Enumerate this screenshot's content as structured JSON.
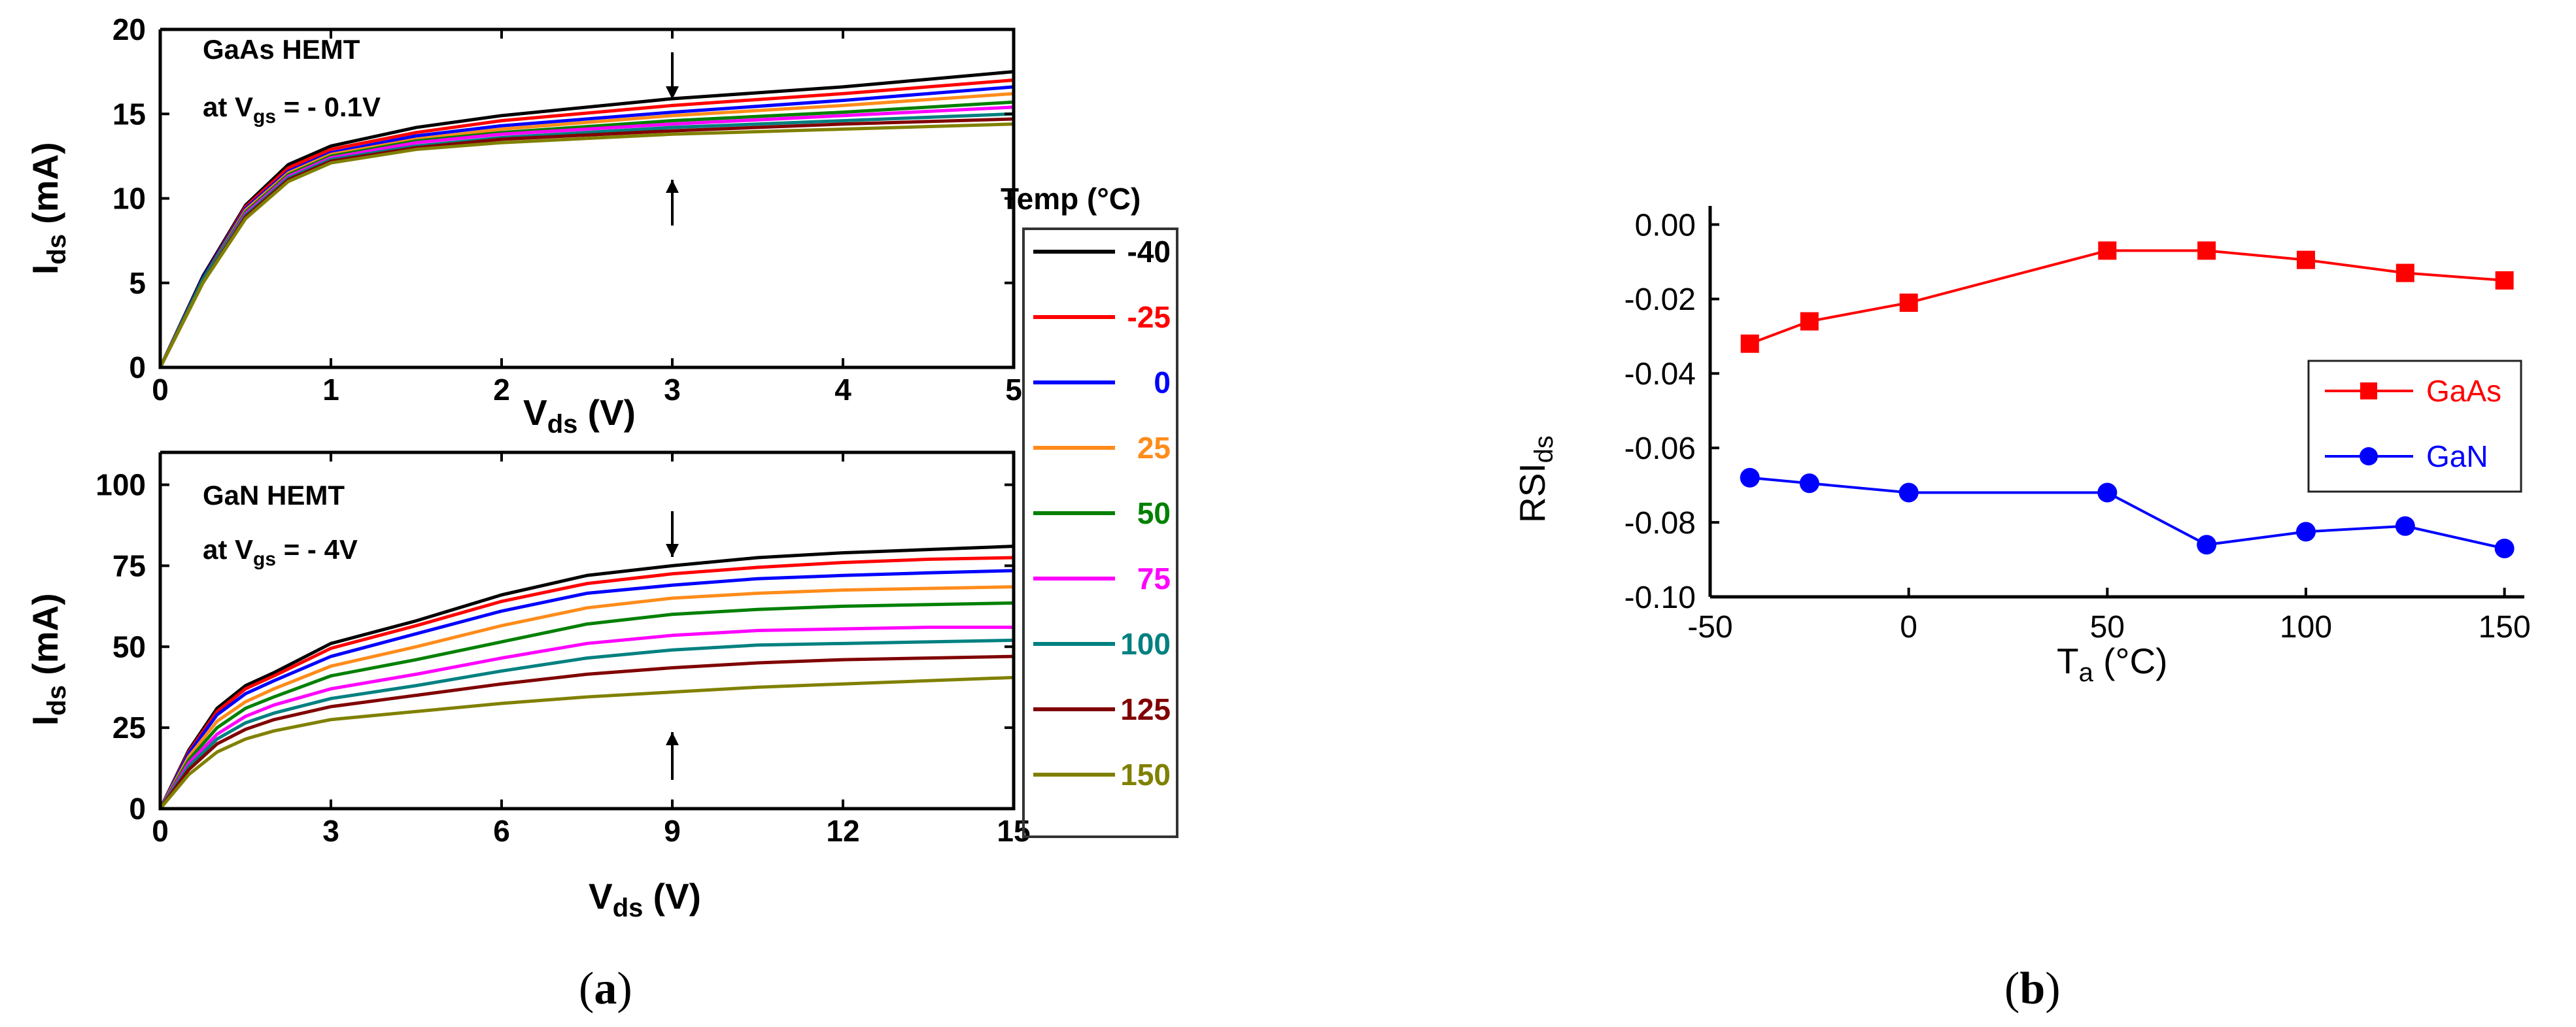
{
  "chart_data": [
    {
      "id": "gaas",
      "type": "line",
      "annotation": {
        "line1": "GaAs HEMT",
        "line2_prefix": "at V",
        "line2_sub": "gs",
        "line2_suffix": " = - 0.1V"
      },
      "xlabel": {
        "main": "V",
        "sub": "ds",
        "unit": " (V)"
      },
      "ylabel": {
        "main": "I",
        "sub": "ds",
        "unit": " (mA)"
      },
      "xlim": [
        0,
        5
      ],
      "ylim": [
        0,
        20
      ],
      "xticks": [
        "0",
        "1",
        "2",
        "3",
        "4",
        "5"
      ],
      "yticks": [
        "0",
        "5",
        "10",
        "15",
        "20"
      ],
      "arrow_x": 3,
      "x": [
        0,
        0.25,
        0.5,
        0.75,
        1,
        1.5,
        2,
        3,
        4,
        5
      ],
      "series": [
        {
          "name": "-40",
          "values": [
            0,
            5.4,
            9.6,
            12.0,
            13.1,
            14.2,
            14.9,
            15.9,
            16.6,
            17.5
          ]
        },
        {
          "name": "-25",
          "values": [
            0,
            5.3,
            9.5,
            11.8,
            12.9,
            13.9,
            14.6,
            15.5,
            16.2,
            17.0
          ]
        },
        {
          "name": "0",
          "values": [
            0,
            5.3,
            9.4,
            11.6,
            12.7,
            13.7,
            14.3,
            15.1,
            15.8,
            16.6
          ]
        },
        {
          "name": "25",
          "values": [
            0,
            5.2,
            9.3,
            11.5,
            12.6,
            13.5,
            14.1,
            14.9,
            15.5,
            16.2
          ]
        },
        {
          "name": "50",
          "values": [
            0,
            5.2,
            9.2,
            11.4,
            12.5,
            13.4,
            13.9,
            14.6,
            15.1,
            15.7
          ]
        },
        {
          "name": "75",
          "values": [
            0,
            5.1,
            9.1,
            11.3,
            12.4,
            13.3,
            13.8,
            14.4,
            14.9,
            15.4
          ]
        },
        {
          "name": "100",
          "values": [
            0,
            5.1,
            9.0,
            11.2,
            12.3,
            13.1,
            13.6,
            14.2,
            14.6,
            15.0
          ]
        },
        {
          "name": "125",
          "values": [
            0,
            5.0,
            8.9,
            11.1,
            12.2,
            13.0,
            13.5,
            14.0,
            14.4,
            14.7
          ]
        },
        {
          "name": "150",
          "values": [
            0,
            5.0,
            8.8,
            11.0,
            12.1,
            12.9,
            13.3,
            13.8,
            14.1,
            14.4
          ]
        }
      ]
    },
    {
      "id": "gan",
      "type": "line",
      "annotation": {
        "line1": "GaN HEMT",
        "line2_prefix": "at V",
        "line2_sub": "gs",
        "line2_suffix": " = - 4V"
      },
      "xlabel": {
        "main": "V",
        "sub": "ds",
        "unit": " (V)"
      },
      "ylabel": {
        "main": "I",
        "sub": "ds",
        "unit": " (mA)"
      },
      "xlim": [
        0,
        15
      ],
      "ylim": [
        0,
        110
      ],
      "xticks": [
        "0",
        "3",
        "6",
        "9",
        "12",
        "15"
      ],
      "yticks": [
        "0",
        "25",
        "50",
        "75",
        "100"
      ],
      "arrow_x": 9,
      "x": [
        0,
        0.5,
        1,
        1.5,
        2,
        3,
        4.5,
        6,
        7.5,
        9,
        10.5,
        12,
        13.5,
        15
      ],
      "series": [
        {
          "name": "-40",
          "values": [
            0,
            18,
            31,
            38,
            42,
            51,
            58,
            66,
            72,
            75,
            77.5,
            79,
            80,
            81
          ]
        },
        {
          "name": "-25",
          "values": [
            0,
            17.5,
            30,
            37,
            41,
            49.5,
            56.5,
            64,
            69.5,
            72.5,
            74.5,
            76,
            77,
            77.5
          ]
        },
        {
          "name": "0",
          "values": [
            0,
            17,
            29,
            35.5,
            39.5,
            47,
            54,
            61,
            66.5,
            69,
            71,
            72,
            72.8,
            73.5
          ]
        },
        {
          "name": "25",
          "values": [
            0,
            16,
            27,
            33,
            37,
            44,
            50,
            56.5,
            62,
            65,
            66.5,
            67.5,
            68,
            68.5
          ]
        },
        {
          "name": "50",
          "values": [
            0,
            15,
            25,
            31,
            34.5,
            41,
            46,
            51.5,
            57,
            60,
            61.5,
            62.5,
            63,
            63.5
          ]
        },
        {
          "name": "75",
          "values": [
            0,
            14,
            23,
            28.5,
            32,
            37,
            41.5,
            46.5,
            51,
            53.5,
            55,
            55.5,
            56,
            56
          ]
        },
        {
          "name": "100",
          "values": [
            0,
            13,
            21.5,
            26.5,
            29.5,
            34,
            38,
            42.5,
            46.5,
            49,
            50.5,
            51,
            51.5,
            52
          ]
        },
        {
          "name": "125",
          "values": [
            0,
            12,
            20,
            24.5,
            27.5,
            31.5,
            35,
            38.5,
            41.5,
            43.5,
            45,
            46,
            46.5,
            47
          ]
        },
        {
          "name": "150",
          "values": [
            0,
            10.5,
            17.5,
            21.5,
            24,
            27.5,
            30,
            32.5,
            34.5,
            36,
            37.5,
            38.5,
            39.5,
            40.5
          ]
        }
      ]
    },
    {
      "id": "rsi",
      "type": "line",
      "xlabel": {
        "main": "T",
        "sub": "a",
        "unit": " (°C)"
      },
      "ylabel": {
        "main": "RSI",
        "sub": "ds",
        "unit": ""
      },
      "xlim": [
        -50,
        155
      ],
      "ylim": [
        -0.1,
        0.005
      ],
      "xticks": [
        "-50",
        "0",
        "50",
        "100",
        "150"
      ],
      "yticks": [
        "0.00",
        "-0.02",
        "-0.04",
        "-0.06",
        "-0.08",
        "-0.10"
      ],
      "x": [
        -40,
        -25,
        0,
        50,
        75,
        100,
        125,
        150
      ],
      "series": [
        {
          "name": "GaAs",
          "marker": "square",
          "values": [
            -0.032,
            -0.026,
            -0.021,
            -0.007,
            -0.007,
            -0.0095,
            -0.013,
            -0.015
          ]
        },
        {
          "name": "GaN",
          "marker": "circle",
          "values": [
            -0.068,
            -0.0695,
            -0.072,
            -0.072,
            -0.086,
            -0.0825,
            -0.081,
            -0.087
          ]
        }
      ]
    }
  ],
  "legend_temp": {
    "title": "Temp (°C)",
    "entries": [
      "-40",
      "-25",
      "0",
      "25",
      "50",
      "75",
      "100",
      "125",
      "150"
    ]
  },
  "colors": {
    "temps": [
      "#000000",
      "#ff0000",
      "#0000ff",
      "#ff8c1a",
      "#008000",
      "#ff00ff",
      "#008080",
      "#800000",
      "#808000"
    ],
    "gaas": "#ff0000",
    "gan": "#0000ff"
  },
  "panel_labels": {
    "a_open": "(",
    "a": "a",
    "a_close": ")",
    "b_open": "(",
    "b": "b",
    "b_close": ")"
  }
}
